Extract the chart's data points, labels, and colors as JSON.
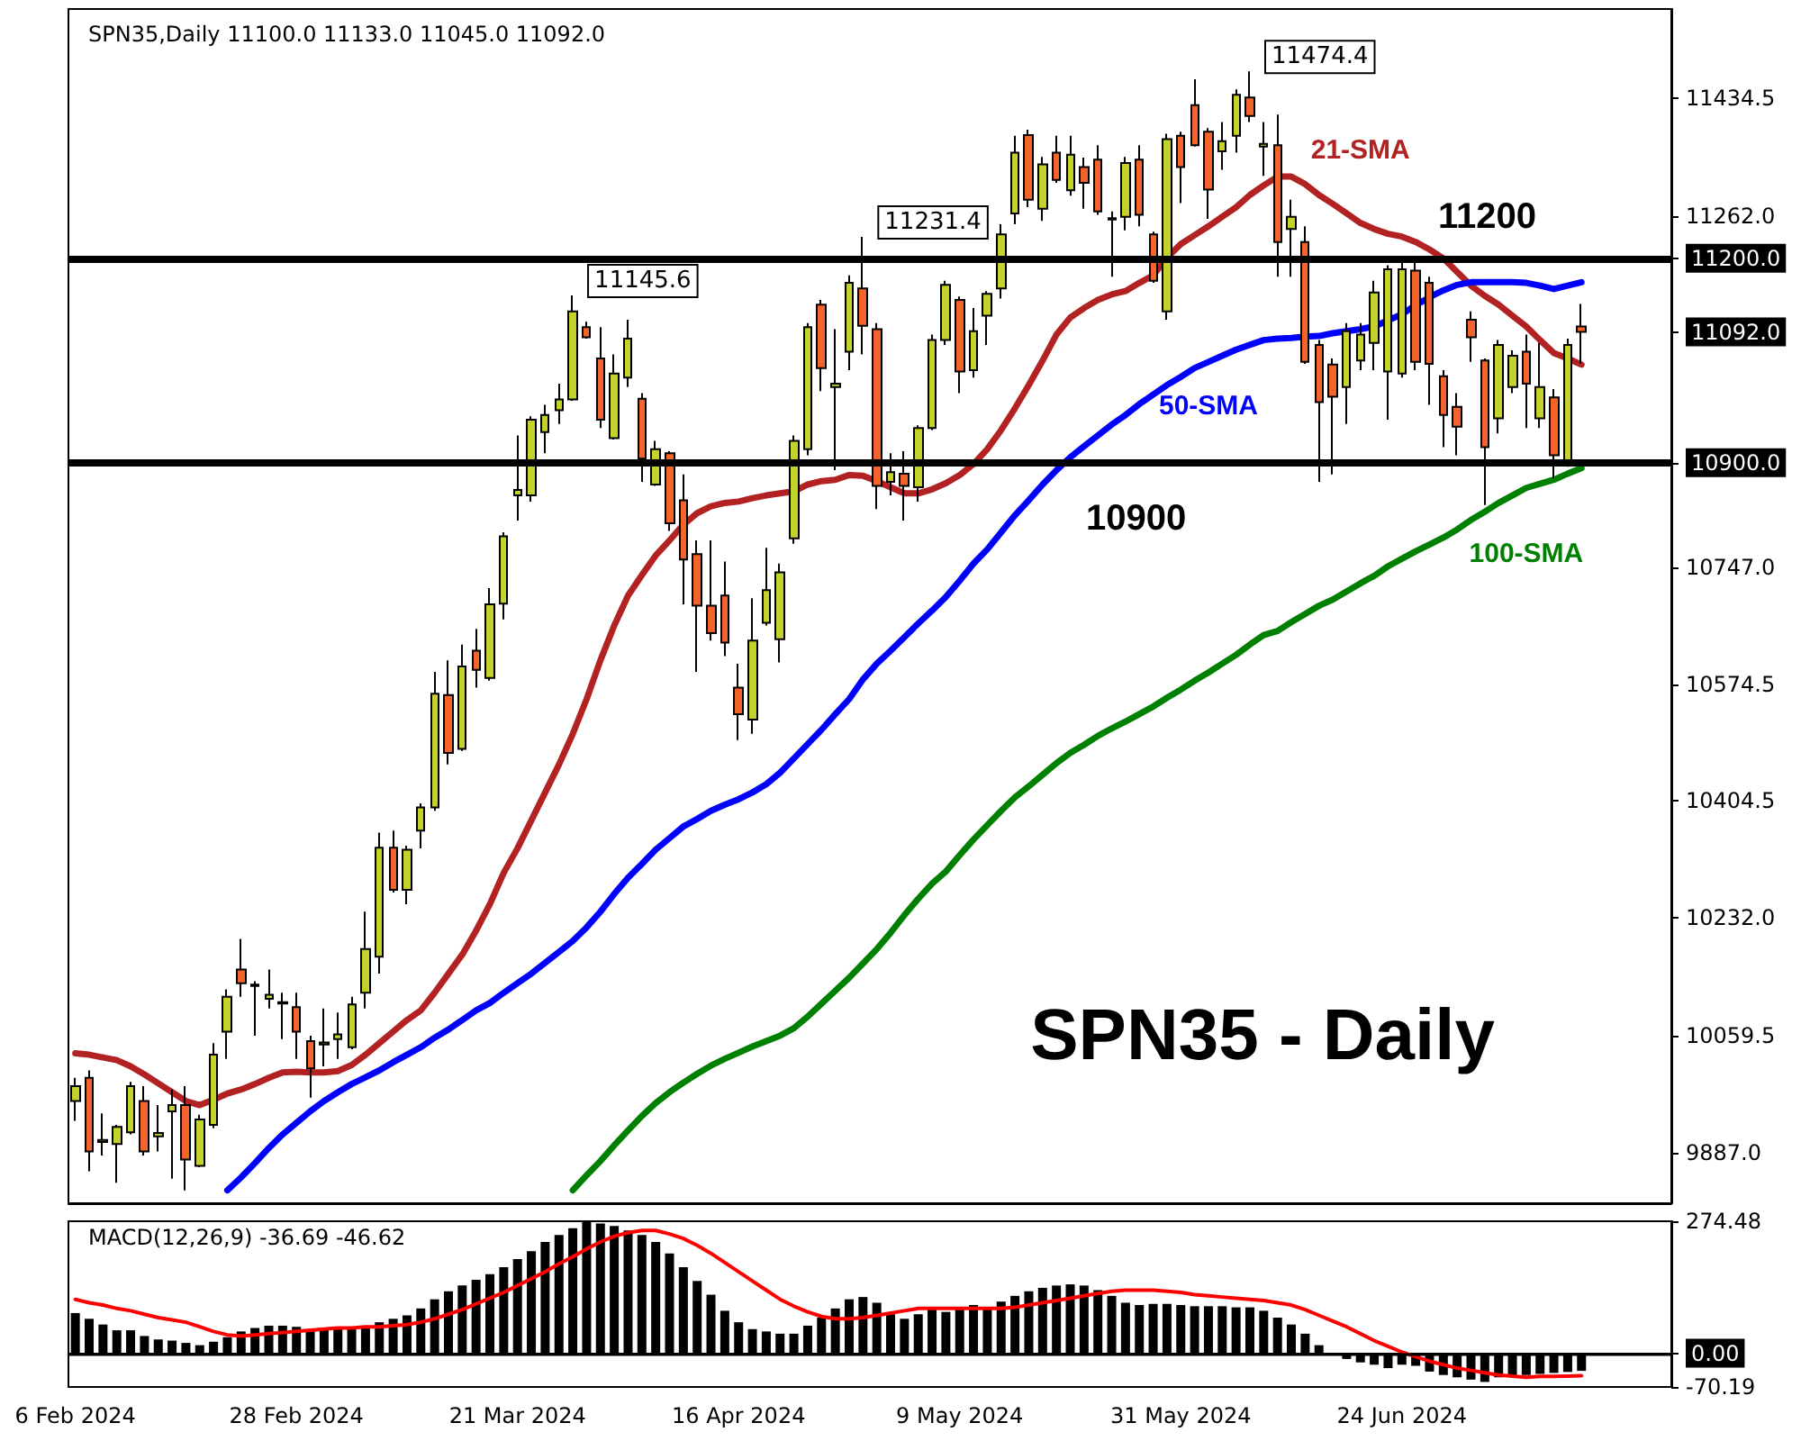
{
  "chart_data": [
    {
      "type": "candlestick",
      "title": "SPN35,Daily 11100.0 11133.0 11045.0 11092.0",
      "categories": [
        "6 Feb 2024",
        null,
        null,
        null,
        null,
        null,
        null,
        null,
        null,
        null,
        null,
        null,
        null,
        null,
        null,
        null,
        "28 Feb 2024",
        null,
        null,
        null,
        null,
        null,
        null,
        null,
        null,
        null,
        null,
        null,
        null,
        null,
        null,
        null,
        "21 Mar 2024",
        null,
        null,
        null,
        null,
        null,
        null,
        null,
        null,
        null,
        null,
        null,
        null,
        null,
        null,
        null,
        "16 Apr 2024",
        null,
        null,
        null,
        null,
        null,
        null,
        null,
        null,
        null,
        null,
        null,
        null,
        null,
        null,
        null,
        "9 May 2024",
        null,
        null,
        null,
        null,
        null,
        null,
        null,
        null,
        null,
        null,
        null,
        null,
        null,
        null,
        null,
        "31 May 2024",
        null,
        null,
        null,
        null,
        null,
        null,
        null,
        null,
        null,
        null,
        null,
        null,
        null,
        null,
        null,
        "24 Jun 2024",
        null,
        null,
        null,
        null,
        null,
        null,
        null,
        null,
        null,
        null,
        null,
        null,
        null
      ],
      "ohlc": [
        [
          9963,
          9997,
          9934,
          9985
        ],
        [
          9997,
          10008,
          9860,
          9889
        ],
        [
          9903,
          9945,
          9883,
          9906
        ],
        [
          9900,
          9928,
          9843,
          9925
        ],
        [
          9917,
          9991,
          9914,
          9985
        ],
        [
          9963,
          9985,
          9883,
          9889
        ],
        [
          9911,
          9957,
          9889,
          9916
        ],
        [
          9948,
          9980,
          9849,
          9957
        ],
        [
          9957,
          9985,
          9832,
          9877
        ],
        [
          9868,
          9943,
          9866,
          9936
        ],
        [
          9928,
          10048,
          9923,
          10031
        ],
        [
          10065,
          10127,
          10025,
          10116
        ],
        [
          10156,
          10201,
          10116,
          10136
        ],
        [
          10132,
          10139,
          10059,
          10134
        ],
        [
          10113,
          10156,
          10099,
          10119
        ],
        [
          10106,
          10122,
          10054,
          10108
        ],
        [
          10101,
          10122,
          10025,
          10065
        ],
        [
          10051,
          10059,
          9968,
          10011
        ],
        [
          10046,
          10099,
          10014,
          10049
        ],
        [
          10054,
          10093,
          10025,
          10061
        ],
        [
          10042,
          10116,
          10039,
          10105
        ],
        [
          10122,
          10241,
          10099,
          10186
        ],
        [
          10175,
          10357,
          10150,
          10335
        ],
        [
          10335,
          10360,
          10269,
          10273
        ],
        [
          10273,
          10338,
          10252,
          10332
        ],
        [
          10360,
          10400,
          10334,
          10394
        ],
        [
          10394,
          10593,
          10389,
          10561
        ],
        [
          10559,
          10610,
          10457,
          10474
        ],
        [
          10480,
          10633,
          10477,
          10601
        ],
        [
          10624,
          10656,
          10570,
          10596
        ],
        [
          10584,
          10716,
          10580,
          10692
        ],
        [
          10693,
          10798,
          10670,
          10792
        ],
        [
          10852,
          10940,
          10815,
          10860
        ],
        [
          10852,
          10968,
          10843,
          10963
        ],
        [
          10945,
          10985,
          10914,
          10970
        ],
        [
          10977,
          11016,
          10957,
          10993
        ],
        [
          10993,
          11145.6,
          10991,
          11122
        ],
        [
          11099,
          11107,
          11082,
          11084
        ],
        [
          11053,
          11099,
          10951,
          10963
        ],
        [
          10936,
          11059,
          10934,
          11031
        ],
        [
          11025,
          11110,
          11011,
          11082
        ],
        [
          10994,
          11002,
          10872,
          10906
        ],
        [
          10868,
          10932,
          10866,
          10920
        ],
        [
          10914,
          10917,
          10800,
          10811
        ],
        [
          10845,
          10883,
          10692,
          10758
        ],
        [
          10766,
          10786,
          10593,
          10690
        ],
        [
          10690,
          10786,
          10639,
          10650
        ],
        [
          10705,
          10755,
          10616,
          10636
        ],
        [
          10570,
          10605,
          10493,
          10531
        ],
        [
          10523,
          10701,
          10502,
          10639
        ],
        [
          10665,
          10775,
          10661,
          10713
        ],
        [
          10641,
          10752,
          10607,
          10739
        ],
        [
          10789,
          10940,
          10781,
          10932
        ],
        [
          10920,
          11105,
          10911,
          11099
        ],
        [
          11132,
          11139,
          11005,
          11039
        ],
        [
          11011,
          11096,
          10889,
          11016
        ],
        [
          11063,
          11175,
          11036,
          11164
        ],
        [
          11156,
          11231.4,
          11059,
          11101
        ],
        [
          11096,
          11105,
          10832,
          10866
        ],
        [
          10872,
          10914,
          10852,
          10886
        ],
        [
          10884,
          10917,
          10815,
          10866
        ],
        [
          10864,
          10955,
          10843,
          10951
        ],
        [
          10951,
          11088,
          10948,
          11080
        ],
        [
          11080,
          11167,
          11073,
          11161
        ],
        [
          11139,
          11144,
          11002,
          11034
        ],
        [
          11036,
          11127,
          11025,
          11093
        ],
        [
          11116,
          11152,
          11073,
          11148
        ],
        [
          11156,
          11250,
          11141,
          11235
        ],
        [
          11266,
          11380,
          11250,
          11355
        ],
        [
          11381,
          11389,
          11275,
          11286
        ],
        [
          11273,
          11349,
          11255,
          11338
        ],
        [
          11355,
          11380,
          11311,
          11315
        ],
        [
          11300,
          11380,
          11292,
          11352
        ],
        [
          11334,
          11348,
          11273,
          11311
        ],
        [
          11345,
          11366,
          11264,
          11269
        ],
        [
          11257,
          11269,
          11173,
          11259
        ],
        [
          11261,
          11349,
          11241,
          11340
        ],
        [
          11345,
          11366,
          11247,
          11264
        ],
        [
          11235,
          11239,
          11164,
          11167
        ],
        [
          11122,
          11383,
          11110,
          11375
        ],
        [
          11380,
          11386,
          11281,
          11334
        ],
        [
          11425,
          11463,
          11364,
          11366
        ],
        [
          11386,
          11391,
          11258,
          11301
        ],
        [
          11357,
          11400,
          11330,
          11372
        ],
        [
          11380,
          11448,
          11355,
          11440
        ],
        [
          11436,
          11474.4,
          11400,
          11409
        ],
        [
          11364,
          11400,
          11321,
          11368
        ],
        [
          11366,
          11411,
          11173,
          11224
        ],
        [
          11243,
          11286,
          11173,
          11261
        ],
        [
          11224,
          11247,
          11045,
          11048
        ],
        [
          11073,
          11080,
          10872,
          10989
        ],
        [
          11044,
          11053,
          10883,
          10997
        ],
        [
          11011,
          11105,
          10957,
          11093
        ],
        [
          11050,
          11105,
          11036,
          11088
        ],
        [
          11076,
          11167,
          11036,
          11150
        ],
        [
          11034,
          11190,
          10963,
          11184
        ],
        [
          11031,
          11195,
          11025,
          11184
        ],
        [
          11182,
          11195,
          11036,
          11048
        ],
        [
          11164,
          11173,
          10985,
          11045
        ],
        [
          11027,
          11036,
          10923,
          10970
        ],
        [
          10982,
          11002,
          10911,
          10953
        ],
        [
          11110,
          11122,
          11048,
          11084
        ],
        [
          11050,
          11053,
          10838,
          10923
        ],
        [
          10965,
          11080,
          10943,
          11073
        ],
        [
          11011,
          11065,
          11002,
          11057
        ],
        [
          11063,
          11088,
          10951,
          11016
        ],
        [
          10965,
          11076,
          10951,
          11011
        ],
        [
          10996,
          11008,
          10877,
          10911
        ],
        [
          10900,
          11082,
          10894,
          11073
        ],
        [
          11100,
          11133,
          11045,
          11092
        ]
      ],
      "series": [
        {
          "name": "21-SMA",
          "type": "line",
          "color": "#b22222",
          "values": [
            10033,
            10031,
            10027,
            10023,
            10014,
            10002,
            9989,
            9976,
            9963,
            9957,
            9965,
            9974,
            9980,
            9988,
            9997,
            10005,
            10006,
            10005,
            10005,
            10007,
            10016,
            10031,
            10048,
            10065,
            10082,
            10096,
            10122,
            10150,
            10178,
            10213,
            10252,
            10298,
            10334,
            10375,
            10416,
            10457,
            10502,
            10553,
            10610,
            10661,
            10705,
            10735,
            10764,
            10786,
            10809,
            10826,
            10836,
            10841,
            10843,
            10848,
            10852,
            10855,
            10858,
            10868,
            10873,
            10875,
            10882,
            10881,
            10873,
            10864,
            10855,
            10855,
            10861,
            10870,
            10882,
            10898,
            10920,
            10948,
            10980,
            11014,
            11050,
            11088,
            11113,
            11127,
            11139,
            11147,
            11152,
            11164,
            11175,
            11201,
            11221,
            11234,
            11247,
            11261,
            11275,
            11293,
            11307,
            11320,
            11320,
            11309,
            11293,
            11280,
            11266,
            11252,
            11243,
            11236,
            11232,
            11224,
            11213,
            11200,
            11180,
            11160,
            11145,
            11132,
            11116,
            11100,
            11080,
            11061,
            11053,
            11044
          ]
        },
        {
          "name": "50-SMA",
          "type": "line",
          "color": "#0000ff",
          "values": [
            null,
            null,
            null,
            null,
            null,
            null,
            null,
            null,
            null,
            null,
            null,
            9832,
            9851,
            9872,
            9894,
            9914,
            9931,
            9948,
            9963,
            9976,
            9988,
            9998,
            10008,
            10020,
            10031,
            10042,
            10056,
            10068,
            10082,
            10096,
            10107,
            10122,
            10136,
            10150,
            10166,
            10182,
            10198,
            10218,
            10241,
            10267,
            10291,
            10311,
            10332,
            10349,
            10366,
            10377,
            10389,
            10398,
            10406,
            10416,
            10428,
            10445,
            10466,
            10487,
            10508,
            10531,
            10553,
            10582,
            10605,
            10624,
            10644,
            10664,
            10683,
            10703,
            10727,
            10752,
            10773,
            10798,
            10823,
            10845,
            10868,
            10889,
            10908,
            10924,
            10940,
            10956,
            10970,
            10986,
            11000,
            11014,
            11026,
            11039,
            11048,
            11057,
            11066,
            11073,
            11080,
            11082,
            11083,
            11085,
            11086,
            11090,
            11093,
            11096,
            11100,
            11109,
            11118,
            11131,
            11143,
            11153,
            11161,
            11165,
            11165,
            11165,
            11165,
            11164,
            11160,
            11155,
            11160,
            11165
          ]
        },
        {
          "name": "100-SMA",
          "type": "line",
          "color": "#008000",
          "values": [
            null,
            null,
            null,
            null,
            null,
            null,
            null,
            null,
            null,
            null,
            null,
            null,
            null,
            null,
            null,
            null,
            null,
            null,
            null,
            null,
            null,
            null,
            null,
            null,
            null,
            null,
            null,
            null,
            null,
            null,
            null,
            null,
            null,
            null,
            null,
            null,
            9832,
            9854,
            9875,
            9898,
            9920,
            9941,
            9960,
            9976,
            9990,
            10003,
            10015,
            10025,
            10034,
            10043,
            10051,
            10059,
            10070,
            10087,
            10106,
            10125,
            10144,
            10165,
            10186,
            10210,
            10236,
            10260,
            10282,
            10300,
            10324,
            10347,
            10368,
            10389,
            10409,
            10425,
            10442,
            10459,
            10474,
            10486,
            10499,
            10510,
            10520,
            10531,
            10542,
            10555,
            10567,
            10580,
            10592,
            10605,
            10618,
            10633,
            10647,
            10653,
            10666,
            10678,
            10690,
            10699,
            10711,
            10723,
            10734,
            10748,
            10759,
            10770,
            10780,
            10790,
            10802,
            10816,
            10828,
            10841,
            10852,
            10863,
            10869,
            10875,
            10884,
            10892
          ]
        }
      ],
      "ylim": [
        9813,
        11566
      ],
      "yticks": [
        {
          "value": 9887,
          "label": "9887.0"
        },
        {
          "value": 10059.5,
          "label": "10059.5"
        },
        {
          "value": 10232,
          "label": "10232.0"
        },
        {
          "value": 10404.5,
          "label": "10404.5"
        },
        {
          "value": 10574.5,
          "label": "10574.5"
        },
        {
          "value": 10747,
          "label": "10747.0"
        },
        {
          "value": 10900,
          "label": "10900.0"
        },
        {
          "value": 11092,
          "label": "11092.0"
        },
        {
          "value": 11200,
          "label": "11200.0"
        },
        {
          "value": 11262,
          "label": "11262.0"
        },
        {
          "value": 11434.5,
          "label": "11434.5"
        }
      ],
      "ref_lines": [
        {
          "axis": "y",
          "value": 11200,
          "label": "11200",
          "color": "#000000"
        },
        {
          "axis": "y",
          "value": 10900,
          "label": "10900",
          "color": "#000000"
        }
      ],
      "annotations": [
        "SPN35 - Daily",
        "11145.6",
        "11231.4",
        "11474.4"
      ],
      "grid": false,
      "legend": false
    },
    {
      "type": "bar",
      "title": "MACD(12,26,9) -36.69 -46.62",
      "tick_labels": "y",
      "categories": [
        null,
        null,
        null,
        null,
        null,
        null,
        null,
        null,
        null,
        null,
        null,
        null,
        null,
        null,
        null,
        null,
        null,
        null,
        null,
        null,
        null,
        null,
        null,
        null,
        null,
        null,
        null,
        null,
        null,
        null,
        null,
        null,
        null,
        null,
        null,
        null,
        null,
        null,
        null,
        null,
        null,
        null,
        null,
        null,
        null,
        null,
        null,
        null,
        null,
        null,
        null,
        null,
        null,
        null,
        null,
        null,
        null,
        null,
        null,
        null,
        null,
        null,
        null,
        null,
        null,
        null,
        null,
        null,
        null,
        null,
        null,
        null,
        null,
        null,
        null,
        null,
        null,
        null,
        null,
        null,
        null,
        null,
        null,
        null,
        null,
        null,
        null,
        null,
        null,
        null,
        null,
        null,
        null,
        null,
        null,
        null,
        null,
        null,
        null,
        null,
        null,
        null,
        null,
        null,
        null,
        null,
        null,
        null,
        null,
        null
      ],
      "series": [
        {
          "type": "bar",
          "color": "#000000",
          "values": [
            83.5,
            71.6,
            59.7,
            47.7,
            47.7,
            35.8,
            28.6,
            26.2,
            21.5,
            16.7,
            23.9,
            33.4,
            45.3,
            52.5,
            57.3,
            57.3,
            54.9,
            47.7,
            50.1,
            50.1,
            52.5,
            57.3,
            64.4,
            71.6,
            78.7,
            93.1,
            112.1,
            128.8,
            140.8,
            152.7,
            164.6,
            179.0,
            195.7,
            212.4,
            231.4,
            245.8,
            260.1,
            274.48,
            269.6,
            264.8,
            255.3,
            245.8,
            231.4,
            207.6,
            179.0,
            150.3,
            121.7,
            88.3,
            64.4,
            50.1,
            45.3,
            40.6,
            40.6,
            57.3,
            74.0,
            93.1,
            112.1,
            116.9,
            105.0,
            81.1,
            71.6,
            81.1,
            93.1,
            85.9,
            90.7,
            100.2,
            93.1,
            107.4,
            119.3,
            128.8,
            136.0,
            140.8,
            143.2,
            140.8,
            131.2,
            119.3,
            105.0,
            100.2,
            102.6,
            102.6,
            100.2,
            97.8,
            97.8,
            97.8,
            95.4,
            95.4,
            88.3,
            74.0,
            59.7,
            40.6,
            16.7,
            -2,
            -11.9,
            -19.1,
            -23.9,
            -31.0,
            -23.9,
            -26.2,
            -38.2,
            -45.3,
            -50.1,
            -54.9,
            -59.7,
            -50.1,
            -47.7,
            -45.3,
            -43,
            -41,
            -39,
            -36.69
          ]
        },
        {
          "type": "line",
          "color": "#ff0000",
          "values": [
            112.1,
            105.0,
            100.2,
            93.1,
            88.3,
            81.1,
            74.0,
            69.2,
            64.4,
            54.9,
            45.3,
            38.2,
            35.8,
            38.2,
            40.6,
            42.9,
            45.3,
            47.7,
            50.1,
            52.5,
            52.5,
            54.9,
            54.9,
            57.3,
            59.7,
            64.4,
            71.6,
            81.1,
            90.7,
            102.6,
            114.5,
            126.5,
            140.8,
            155.1,
            169.4,
            186.1,
            200.4,
            217.1,
            231.4,
            243.4,
            250.5,
            255.3,
            255.3,
            248.1,
            238.6,
            224.3,
            207.6,
            188.5,
            169.4,
            150.3,
            131.2,
            112.1,
            97.8,
            85.9,
            76.4,
            71.6,
            71.6,
            74.0,
            78.7,
            83.5,
            88.3,
            93.1,
            93.1,
            93.1,
            93.1,
            93.1,
            93.1,
            93.1,
            95.4,
            100.2,
            105.0,
            109.8,
            114.5,
            119.3,
            124.1,
            128.8,
            131.2,
            131.2,
            131.2,
            128.8,
            126.5,
            121.7,
            119.3,
            116.9,
            114.5,
            112.1,
            109.8,
            105.0,
            100.2,
            90.7,
            78.7,
            66.8,
            54.9,
            40.6,
            26.2,
            14.3,
            2.4,
            -7.2,
            -16.7,
            -23.9,
            -31.0,
            -35.8,
            -40.6,
            -45.3,
            -47.7,
            -50.1,
            -48,
            -48,
            -47.5,
            -46.62
          ]
        }
      ],
      "ylim": [
        -70.19,
        274.48
      ],
      "yticks": [
        {
          "value": -70.19,
          "label": "-70.19"
        },
        {
          "value": 0,
          "label": "0.00"
        },
        {
          "value": 274.48,
          "label": "274.48"
        }
      ],
      "ref_lines": [
        {
          "axis": "y",
          "value": 0,
          "color": "#000000"
        }
      ],
      "grid": false,
      "legend": false
    }
  ]
}
